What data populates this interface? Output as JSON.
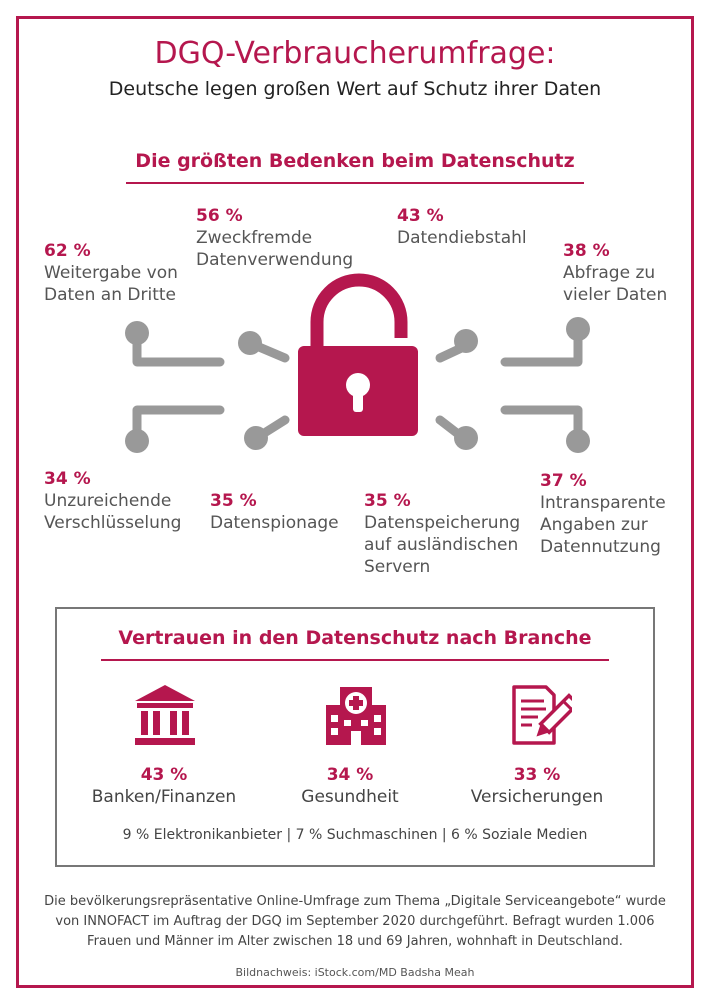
{
  "header": {
    "title": "DGQ-Verbraucherumfrage:",
    "subtitle": "Deutsche legen großen Wert auf Schutz ihrer Daten"
  },
  "concerns": {
    "title": "Die größten Bedenken beim Datenschutz",
    "items": [
      {
        "pct": "62 %",
        "label": "Weitergabe von\nDaten an Dritte"
      },
      {
        "pct": "56 %",
        "label": "Zweckfremde\nDatenverwendung"
      },
      {
        "pct": "43 %",
        "label": "Datendiebstahl"
      },
      {
        "pct": "38 %",
        "label": "Abfrage zu\nvieler Daten"
      },
      {
        "pct": "34 %",
        "label": "Unzureichende\nVerschlüsselung"
      },
      {
        "pct": "35 %",
        "label": "Datenspionage"
      },
      {
        "pct": "35 %",
        "label": "Datenspeicherung\nauf ausländischen\nServern"
      },
      {
        "pct": "37 %",
        "label": "Intransparente\nAngaben zur\nDatennutzung"
      }
    ]
  },
  "trust": {
    "title": "Vertrauen in den Datenschutz nach Branche",
    "sectors": [
      {
        "pct": "43 %",
        "label": "Banken/Finanzen",
        "icon": "bank-icon"
      },
      {
        "pct": "34 %",
        "label": "Gesundheit",
        "icon": "hospital-icon"
      },
      {
        "pct": "33 %",
        "label": "Versicherungen",
        "icon": "contract-pen-icon"
      }
    ],
    "others": "9 % Elektronikanbieter | 7 % Suchmaschinen | 6 % Soziale Medien"
  },
  "footnote": "Die bevölkerungsrepräsentative Online-Umfrage zum Thema „Digitale Serviceangebote“ wurde von INNOFACT im Auftrag der DGQ im September 2020 durchgeführt. Befragt wurden 1.006 Frauen und Männer im Alter zwischen 18 und 69 Jahren, wohnhaft in Deutschland.",
  "credit": "Bildnachweis: iStock.com/MD Badsha Meah",
  "colors": {
    "accent": "#b5174e",
    "gray": "#999999",
    "text": "#3a3a3a"
  }
}
